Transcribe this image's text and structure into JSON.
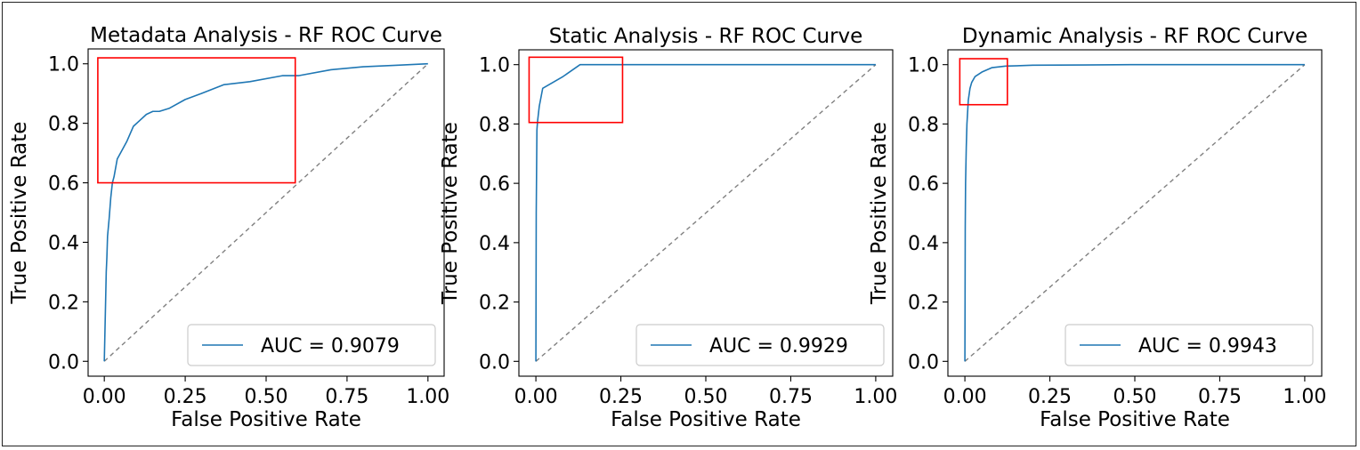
{
  "chart_data": [
    {
      "type": "line",
      "title": "Metadata Analysis - RF ROC Curve",
      "xlabel": "False Positive Rate",
      "ylabel": "True Positive Rate",
      "xlim": [
        -0.05,
        1.05
      ],
      "ylim": [
        -0.05,
        1.05
      ],
      "xticks": [
        "0.00",
        "0.25",
        "0.50",
        "0.75",
        "1.00"
      ],
      "yticks": [
        "0.0",
        "0.2",
        "0.4",
        "0.6",
        "0.8",
        "1.0"
      ],
      "series": [
        {
          "name": "AUC = 0.9079",
          "color": "#1f77b4",
          "x": [
            0,
            0.002,
            0.004,
            0.006,
            0.008,
            0.01,
            0.015,
            0.02,
            0.025,
            0.03,
            0.04,
            0.05,
            0.07,
            0.09,
            0.11,
            0.13,
            0.15,
            0.17,
            0.2,
            0.25,
            0.3,
            0.37,
            0.45,
            0.55,
            0.6,
            0.7,
            0.8,
            0.9,
            1.0
          ],
          "y": [
            0,
            0.1,
            0.2,
            0.3,
            0.35,
            0.42,
            0.48,
            0.55,
            0.6,
            0.62,
            0.68,
            0.7,
            0.74,
            0.79,
            0.81,
            0.83,
            0.84,
            0.84,
            0.85,
            0.88,
            0.9,
            0.93,
            0.94,
            0.96,
            0.96,
            0.98,
            0.99,
            0.995,
            1.0
          ]
        }
      ],
      "diagonal": {
        "color": "#808080",
        "style": "dashed"
      },
      "highlight_box": {
        "x0": -0.02,
        "x1": 0.59,
        "y0": 0.6,
        "y1": 1.02,
        "color": "#ff0000"
      },
      "legend": {
        "label": "AUC = 0.9079",
        "placement": "lower-right"
      }
    },
    {
      "type": "line",
      "title": "Static Analysis - RF ROC Curve",
      "xlabel": "False Positive Rate",
      "ylabel": "True Positive Rate",
      "xlim": [
        -0.05,
        1.05
      ],
      "ylim": [
        -0.05,
        1.05
      ],
      "xticks": [
        "0.00",
        "0.25",
        "0.50",
        "0.75",
        "1.00"
      ],
      "yticks": [
        "0.0",
        "0.2",
        "0.4",
        "0.6",
        "0.8",
        "1.0"
      ],
      "series": [
        {
          "name": "AUC = 0.9929",
          "color": "#1f77b4",
          "x": [
            0,
            0.001,
            0.003,
            0.005,
            0.01,
            0.02,
            0.05,
            0.08,
            0.13,
            0.2,
            0.4,
            0.6,
            0.8,
            1.0
          ],
          "y": [
            0,
            0.5,
            0.78,
            0.81,
            0.86,
            0.92,
            0.94,
            0.96,
            1.0,
            1.0,
            1.0,
            1.0,
            1.0,
            1.0
          ]
        }
      ],
      "diagonal": {
        "color": "#808080",
        "style": "dashed"
      },
      "highlight_box": {
        "x0": -0.02,
        "x1": 0.255,
        "y0": 0.805,
        "y1": 1.025,
        "color": "#ff0000"
      },
      "legend": {
        "label": "AUC = 0.9929",
        "placement": "lower-right"
      }
    },
    {
      "type": "line",
      "title": "Dynamic Analysis - RF ROC Curve",
      "xlabel": "False Positive Rate",
      "ylabel": "True Positive Rate",
      "xlim": [
        -0.05,
        1.05
      ],
      "ylim": [
        -0.05,
        1.05
      ],
      "xticks": [
        "0.00",
        "0.25",
        "0.50",
        "0.75",
        "1.00"
      ],
      "yticks": [
        "0.0",
        "0.2",
        "0.4",
        "0.6",
        "0.8",
        "1.0"
      ],
      "series": [
        {
          "name": "AUC = 0.9943",
          "color": "#1f77b4",
          "x": [
            0,
            0.0005,
            0.001,
            0.002,
            0.004,
            0.006,
            0.01,
            0.015,
            0.02,
            0.03,
            0.05,
            0.08,
            0.12,
            0.2,
            0.35,
            0.5,
            1.0
          ],
          "y": [
            0,
            0.2,
            0.45,
            0.6,
            0.72,
            0.8,
            0.88,
            0.92,
            0.94,
            0.96,
            0.975,
            0.99,
            0.995,
            0.998,
            0.999,
            1.0,
            1.0
          ]
        }
      ],
      "diagonal": {
        "color": "#808080",
        "style": "dashed"
      },
      "highlight_box": {
        "x0": -0.015,
        "x1": 0.125,
        "y0": 0.865,
        "y1": 1.02,
        "color": "#ff0000"
      },
      "legend": {
        "label": "AUC = 0.9943",
        "placement": "lower-right"
      }
    }
  ]
}
